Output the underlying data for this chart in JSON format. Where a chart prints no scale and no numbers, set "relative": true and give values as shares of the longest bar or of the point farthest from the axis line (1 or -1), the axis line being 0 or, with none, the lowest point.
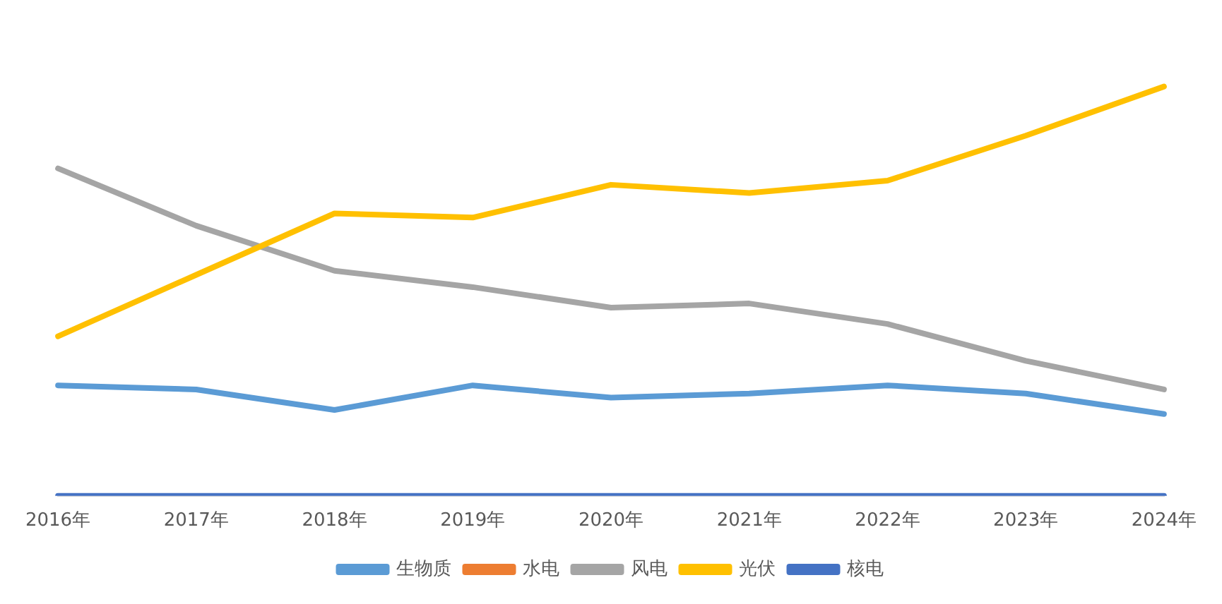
{
  "chart_data": {
    "type": "line",
    "relative": true,
    "categories": [
      "2016年",
      "2017年",
      "2018年",
      "2019年",
      "2020年",
      "2021年",
      "2022年",
      "2023年",
      "2024年"
    ],
    "series": [
      {
        "name": "生物质",
        "color": "#5b9bd5",
        "values": [
          0.27,
          0.26,
          0.21,
          0.27,
          0.24,
          0.25,
          0.27,
          0.25,
          0.2
        ]
      },
      {
        "name": "水电",
        "color": "#ed7d31",
        "values": [
          null,
          null,
          null,
          null,
          null,
          null,
          null,
          null,
          null
        ]
      },
      {
        "name": "风电",
        "color": "#a5a5a5",
        "values": [
          0.8,
          0.66,
          0.55,
          0.51,
          0.46,
          0.47,
          0.42,
          0.33,
          0.26
        ]
      },
      {
        "name": "光伏",
        "color": "#ffc000",
        "values": [
          0.39,
          0.54,
          0.69,
          0.68,
          0.76,
          0.74,
          0.77,
          0.88,
          1
        ]
      },
      {
        "name": "核电",
        "color": "#4472c4",
        "values": [
          0,
          0,
          0,
          0,
          0,
          0,
          0,
          0,
          0
        ]
      }
    ],
    "grid": false,
    "legend": "bottom",
    "marker": "none",
    "line_style": "solid"
  }
}
